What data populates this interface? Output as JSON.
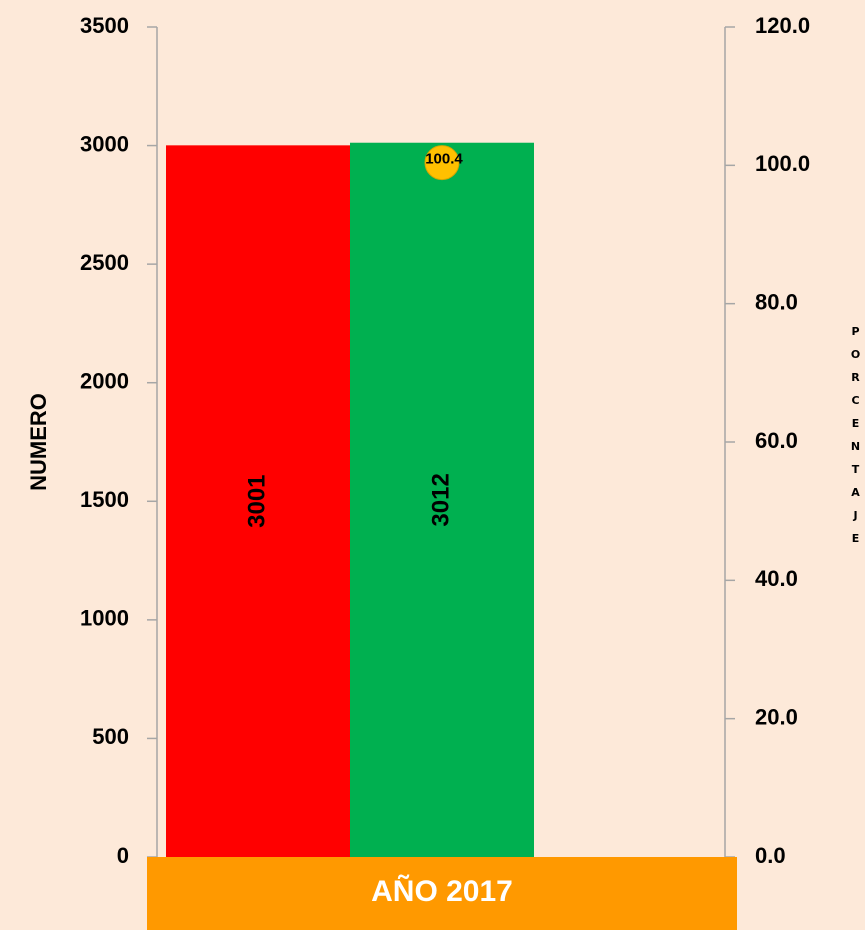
{
  "chart_data": {
    "type": "bar",
    "categories": [
      "AÑO 2017"
    ],
    "series": [
      {
        "color": "#ff0000",
        "values": [
          3001
        ]
      },
      {
        "color": "#00b050",
        "values": [
          3012
        ]
      },
      {
        "color": "#ffc000",
        "values": [
          100.4
        ],
        "axis": "y2"
      }
    ],
    "ylabel": "NUMERO",
    "y2label": "PORCENTAJE",
    "ylim": [
      0,
      3500
    ],
    "yticks": [
      0,
      500,
      1000,
      1500,
      2000,
      2500,
      3000,
      3500
    ],
    "y2lim": [
      0,
      120
    ],
    "y2ticks": [
      {
        "value": 0,
        "label": "0.0"
      },
      {
        "value": 20,
        "label": "20.0"
      },
      {
        "value": 40,
        "label": "40.0"
      },
      {
        "value": 60,
        "label": "60.0"
      },
      {
        "value": 80,
        "label": "80.0"
      },
      {
        "value": 100,
        "label": "100.0"
      },
      {
        "value": 120,
        "label": "120.0"
      }
    ],
    "category_color": "#ff9900"
  }
}
